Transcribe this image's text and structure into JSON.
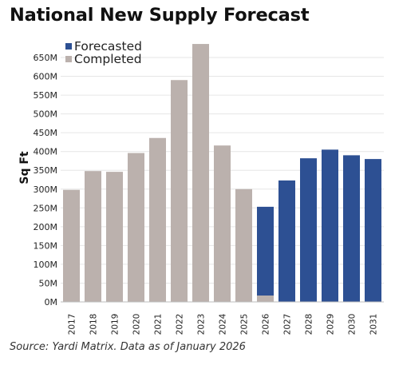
{
  "title": "National New Supply Forecast",
  "source": "Source: Yardi Matrix. Data as of January 2026",
  "chart_data": {
    "type": "bar",
    "stacked": true,
    "categories": [
      "2017",
      "2018",
      "2019",
      "2020",
      "2021",
      "2022",
      "2023",
      "2024",
      "2025",
      "2026",
      "2027",
      "2028",
      "2029",
      "2030",
      "2031"
    ],
    "series": [
      {
        "name": "Completed",
        "color": "#bbb1ad",
        "values": [
          298,
          348,
          346,
          396,
          436,
          590,
          686,
          416,
          300,
          17,
          0,
          0,
          0,
          0,
          0
        ]
      },
      {
        "name": "Forecasted",
        "color": "#2d5093",
        "values": [
          0,
          0,
          0,
          0,
          0,
          0,
          0,
          0,
          0,
          236,
          323,
          382,
          405,
          390,
          380
        ]
      }
    ],
    "ylabel": "Sq Ft",
    "xlabel": "",
    "ylim": [
      0,
      690
    ],
    "yticks": [
      0,
      50,
      100,
      150,
      200,
      250,
      300,
      350,
      400,
      450,
      500,
      550,
      600,
      650
    ],
    "ytick_labels": [
      "0M",
      "50M",
      "100M",
      "150M",
      "200M",
      "250M",
      "300M",
      "350M",
      "400M",
      "450M",
      "500M",
      "550M",
      "600M",
      "650M"
    ],
    "legend": [
      "Forecasted",
      "Completed"
    ],
    "legend_position": "top-left",
    "grid": true
  }
}
